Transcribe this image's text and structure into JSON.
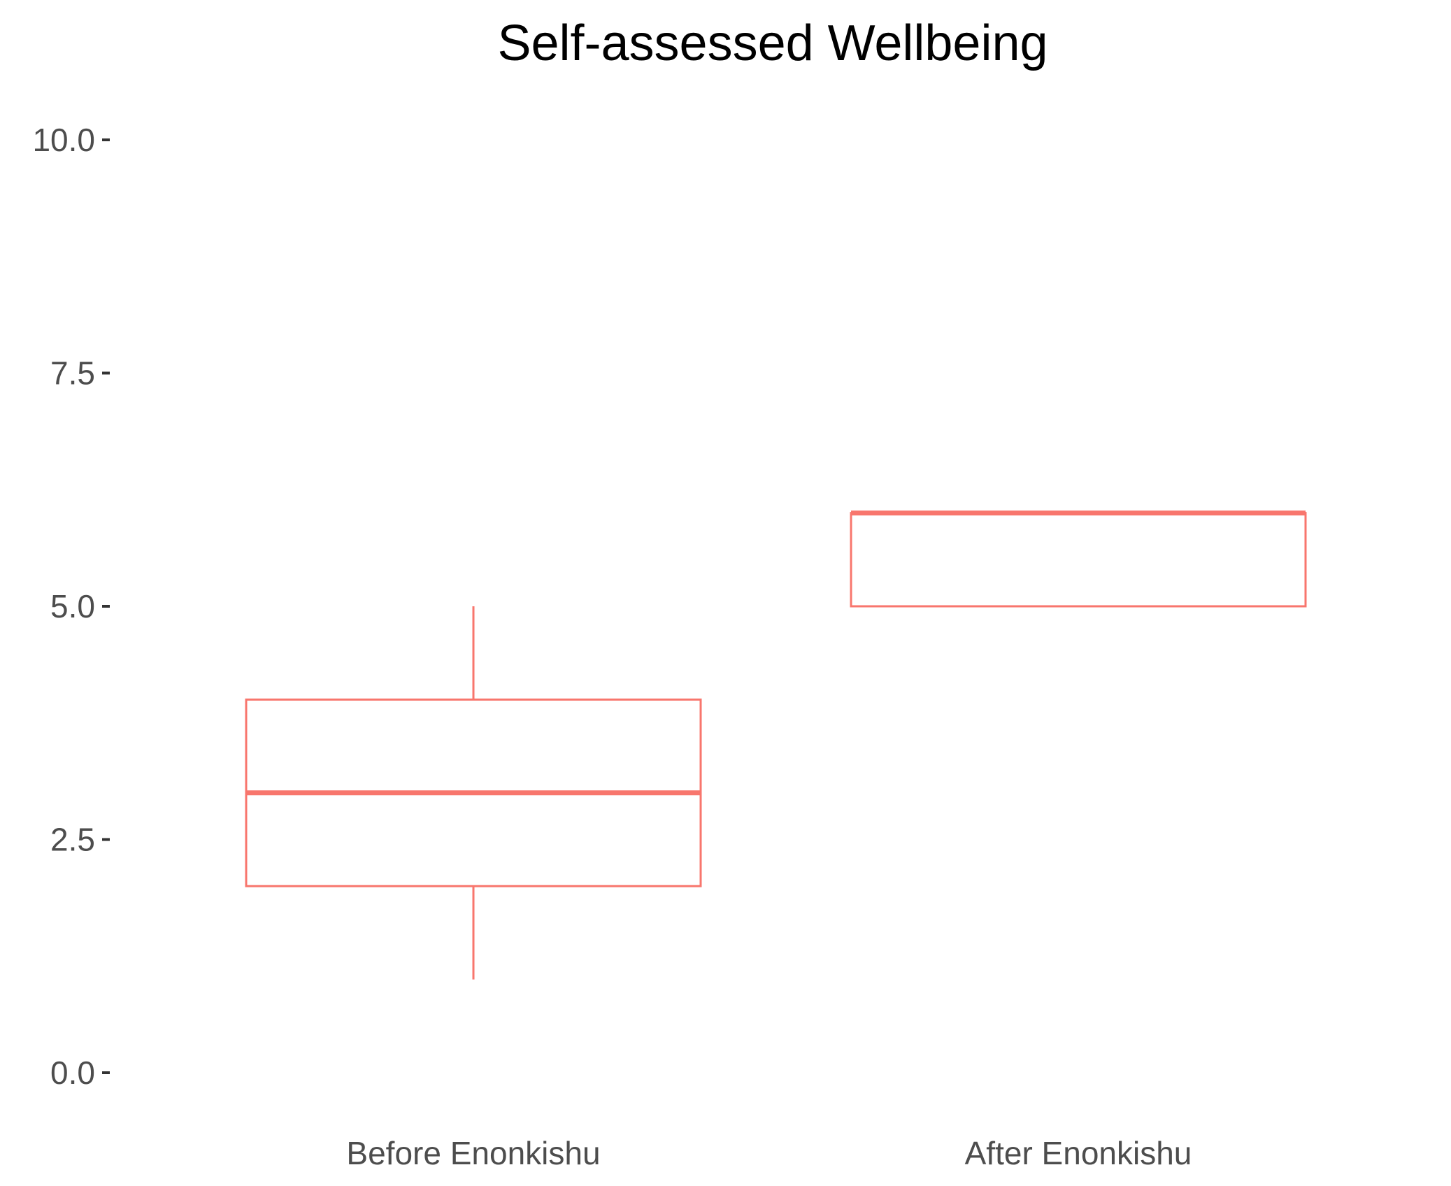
{
  "chart_data": {
    "type": "box",
    "title": "Self-assessed Wellbeing",
    "xlabel": "",
    "ylabel": "",
    "categories": [
      "Before Enonkishu",
      "After Enonkishu"
    ],
    "boxes": [
      {
        "category": "Before Enonkishu",
        "whisker_low": 1,
        "q1": 2,
        "median": 3,
        "q3": 4,
        "whisker_high": 5
      },
      {
        "category": "After Enonkishu",
        "whisker_low": 5,
        "q1": 5,
        "median": 6,
        "q3": 6,
        "whisker_high": 6
      }
    ],
    "ylim": [
      0,
      10
    ],
    "yticks": [
      0,
      2.5,
      5,
      7.5,
      10
    ],
    "ytick_labels": [
      "0.0",
      "2.5",
      "5.0",
      "7.5",
      "10.0"
    ],
    "grid": false,
    "legend": "none",
    "box_color": "#F8766D",
    "background": "#FFFFFF",
    "tick_label_color": "#4D4D4D",
    "tick_mark_color": "#333333",
    "title_color": "#000000"
  }
}
